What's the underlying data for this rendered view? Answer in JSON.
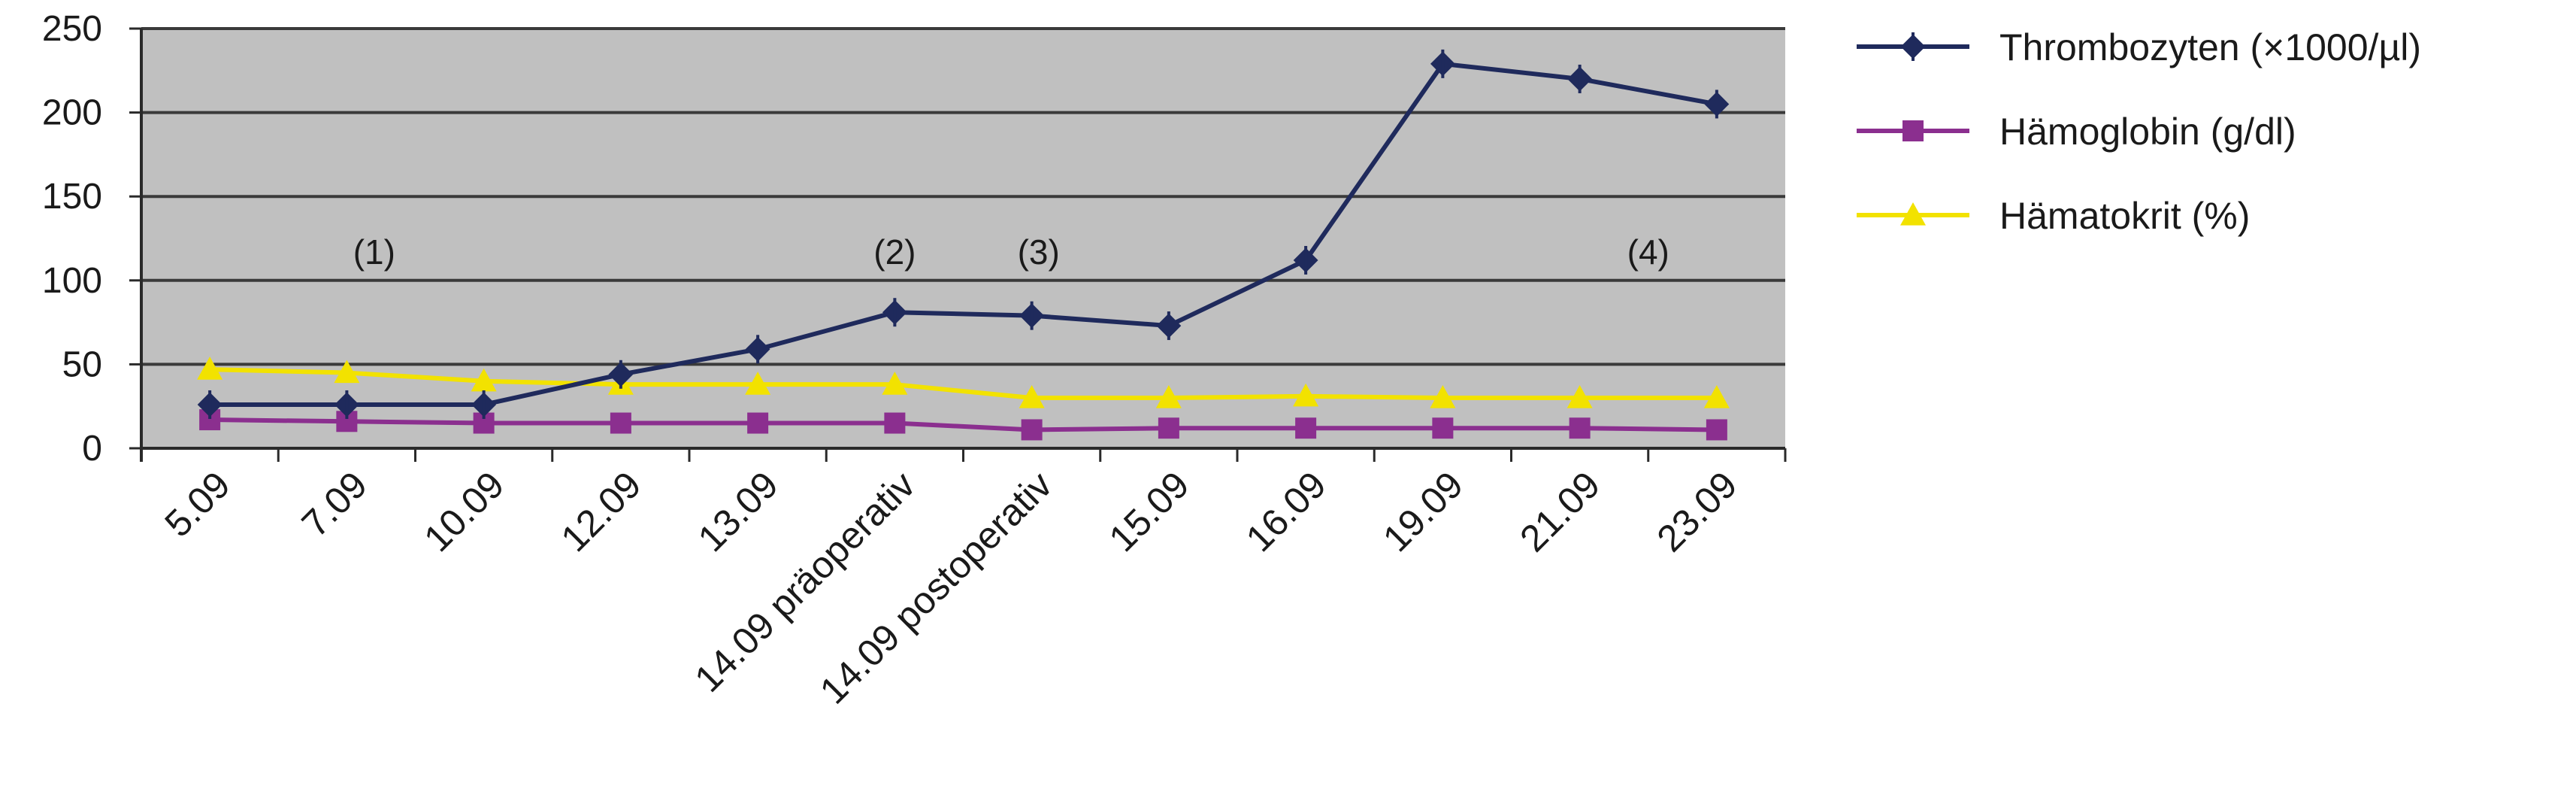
{
  "chart_data": {
    "type": "line",
    "categories": [
      "5.09",
      "7.09",
      "10.09",
      "12.09",
      "13.09",
      "14.09 präoperativ",
      "14.09 postoperativ",
      "15.09",
      "16.09",
      "19.09",
      "21.09",
      "23.09"
    ],
    "ylim": [
      0,
      250
    ],
    "yticks": [
      0,
      50,
      100,
      150,
      200,
      250
    ],
    "grid": true,
    "plot_background": "#c0c0c0",
    "legend_position": "right",
    "series": [
      {
        "name": "Thrombozyten (×1000/µl)",
        "color": "#1f2a5c",
        "marker": "diamond",
        "values": [
          26,
          26,
          26,
          44,
          59,
          81,
          79,
          73,
          112,
          229,
          220,
          205
        ]
      },
      {
        "name": "Hämoglobin (g/dl)",
        "color": "#8b2f8f",
        "marker": "square",
        "values": [
          17,
          16,
          15,
          15,
          15,
          15,
          11,
          12,
          12,
          12,
          12,
          11
        ]
      },
      {
        "name": "Hämatokrit (%)",
        "color": "#f2e200",
        "marker": "triangle",
        "values": [
          47,
          45,
          40,
          38,
          38,
          38,
          30,
          30,
          31,
          30,
          30,
          30
        ]
      }
    ],
    "annotations": [
      {
        "text": "(1)",
        "category_index": 1.2,
        "y": 117
      },
      {
        "text": "(2)",
        "category_index": 5.0,
        "y": 117
      },
      {
        "text": "(3)",
        "category_index": 6.05,
        "y": 117
      },
      {
        "text": "(4)",
        "category_index": 10.5,
        "y": 117
      }
    ]
  }
}
